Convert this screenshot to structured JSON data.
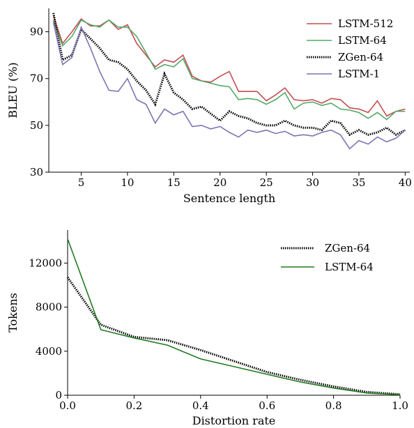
{
  "chart_data": [
    {
      "type": "line",
      "xlabel": "Sentence length",
      "ylabel": "BLEU (%)",
      "xlim": [
        1.5,
        40.5
      ],
      "ylim": [
        30,
        100
      ],
      "xticks": [
        5,
        10,
        15,
        20,
        25,
        30,
        35,
        40
      ],
      "yticks": [
        30,
        50,
        70,
        90
      ],
      "legend": "top-right",
      "series": [
        {
          "name": "LSTM-512",
          "color": "#c44e52",
          "style": "solid",
          "x": [
            2,
            3,
            4,
            5,
            6,
            7,
            8,
            9,
            10,
            11,
            12,
            13,
            14,
            15,
            16,
            17,
            18,
            19,
            20,
            21,
            22,
            23,
            24,
            25,
            26,
            27,
            28,
            29,
            30,
            31,
            32,
            33,
            34,
            35,
            36,
            37,
            38,
            39,
            40
          ],
          "values": [
            97,
            85,
            90,
            95.5,
            92.5,
            92.5,
            95,
            91,
            93,
            85,
            80,
            75,
            78,
            77,
            80,
            71,
            69,
            68.5,
            71,
            73,
            64.5,
            64.5,
            64.5,
            60.5,
            63,
            66,
            61,
            60.5,
            61,
            59.5,
            61.5,
            61,
            57.5,
            57,
            55.5,
            60.5,
            54,
            56,
            57
          ]
        },
        {
          "name": "LSTM-64",
          "color": "#55a868",
          "style": "solid",
          "x": [
            2,
            3,
            4,
            5,
            6,
            7,
            8,
            9,
            10,
            11,
            12,
            13,
            14,
            15,
            16,
            17,
            18,
            19,
            20,
            21,
            22,
            23,
            24,
            25,
            26,
            27,
            28,
            29,
            30,
            31,
            32,
            33,
            34,
            35,
            36,
            37,
            38,
            39,
            40
          ],
          "values": [
            95,
            84,
            88,
            95,
            93,
            92,
            95,
            92,
            92,
            88,
            81,
            74,
            76,
            75,
            78.5,
            70,
            69,
            68,
            67,
            66.5,
            61,
            61.5,
            61,
            59,
            61,
            64,
            57,
            59.5,
            60,
            58.5,
            59.5,
            57,
            56.5,
            55.5,
            53,
            55.5,
            52.5,
            56,
            56
          ]
        },
        {
          "name": "ZGen-64",
          "color": "#000000",
          "style": "dotted",
          "x": [
            2,
            3,
            4,
            5,
            6,
            7,
            8,
            9,
            10,
            11,
            12,
            13,
            14,
            15,
            16,
            17,
            18,
            19,
            20,
            21,
            22,
            23,
            24,
            25,
            26,
            27,
            28,
            29,
            30,
            31,
            32,
            33,
            34,
            35,
            36,
            37,
            38,
            39,
            40
          ],
          "values": [
            98,
            78,
            80,
            91,
            87,
            83,
            78,
            77,
            74,
            69,
            65,
            59,
            72,
            64,
            61,
            57,
            58,
            55,
            52,
            56,
            54,
            53,
            51,
            50,
            50,
            52,
            50,
            49,
            49,
            48,
            52,
            51,
            46,
            48,
            46,
            47,
            49,
            46,
            48
          ]
        },
        {
          "name": "LSTM-1",
          "color": "#8172b2",
          "style": "solid",
          "x": [
            2,
            3,
            4,
            5,
            6,
            7,
            8,
            9,
            10,
            11,
            12,
            13,
            14,
            15,
            16,
            17,
            18,
            19,
            20,
            21,
            22,
            23,
            24,
            25,
            26,
            27,
            28,
            29,
            30,
            31,
            32,
            33,
            34,
            35,
            36,
            37,
            38,
            39,
            40
          ],
          "values": [
            94,
            76,
            79,
            92,
            83,
            73,
            65,
            64.5,
            70,
            61,
            59,
            51,
            57,
            54.5,
            56,
            49.5,
            50,
            48.5,
            49.5,
            47,
            45,
            48,
            47,
            48,
            46.5,
            47.5,
            45.5,
            46,
            45.5,
            47,
            48,
            46,
            40,
            43.5,
            42,
            45,
            43,
            44.5,
            48
          ]
        }
      ]
    },
    {
      "type": "line",
      "xlabel": "Distortion rate",
      "ylabel": "Tokens",
      "xlim": [
        0,
        1
      ],
      "ylim": [
        0,
        15000
      ],
      "xticks": [
        "0.0",
        "0.2",
        "0.4",
        "0.6",
        "0.8",
        "1.0"
      ],
      "yticks": [
        0,
        4000,
        8000,
        12000
      ],
      "legend": "top-right",
      "series": [
        {
          "name": "ZGen-64",
          "color": "#000000",
          "style": "dotted",
          "x": [
            0,
            0.1,
            0.2,
            0.3,
            0.4,
            0.5,
            0.6,
            0.7,
            0.8,
            0.9,
            1.0
          ],
          "values": [
            10700,
            6400,
            5300,
            5000,
            4100,
            3100,
            2100,
            1400,
            800,
            300,
            80
          ]
        },
        {
          "name": "LSTM-64",
          "color": "#1f7a1f",
          "style": "solid",
          "x": [
            0,
            0.1,
            0.2,
            0.3,
            0.4,
            0.5,
            0.6,
            0.7,
            0.8,
            0.9,
            1.0
          ],
          "values": [
            14200,
            5950,
            5200,
            4550,
            3300,
            2600,
            1900,
            1200,
            650,
            200,
            50
          ]
        }
      ]
    }
  ]
}
